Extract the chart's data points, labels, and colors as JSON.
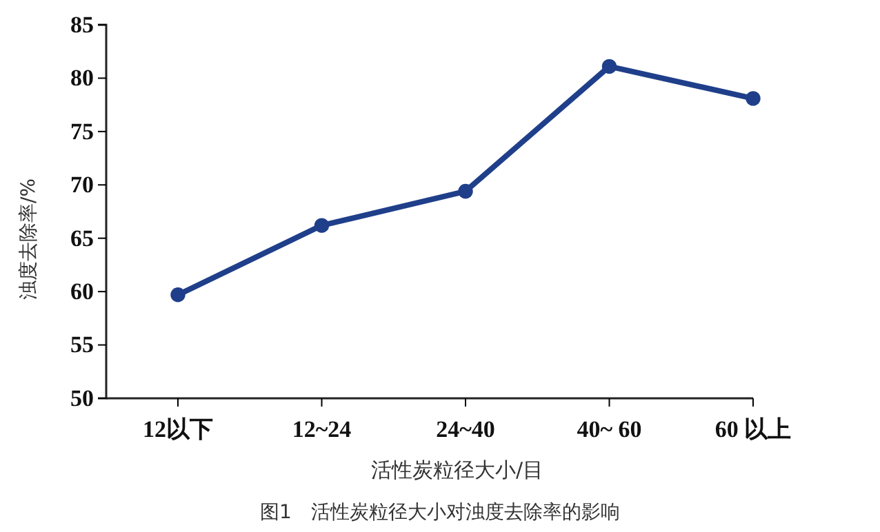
{
  "chart_data": {
    "type": "line",
    "title": "图1　活性炭粒径大小对浊度去除率的影响",
    "xlabel": "活性炭粒径大小/目",
    "ylabel": "浊度去除率/%",
    "categories": [
      "12以下",
      "12~24",
      "24~40",
      "40~ 60",
      "60 以上"
    ],
    "series": [
      {
        "color": "#1f3f8a",
        "values": [
          59.7,
          66.2,
          69.4,
          81.1,
          78.1
        ]
      }
    ],
    "ylim": [
      50,
      85
    ],
    "yticks": [
      50,
      55,
      60,
      65,
      70,
      75,
      80,
      85
    ],
    "grid": false,
    "marker": "circle",
    "line_style": "solid"
  }
}
